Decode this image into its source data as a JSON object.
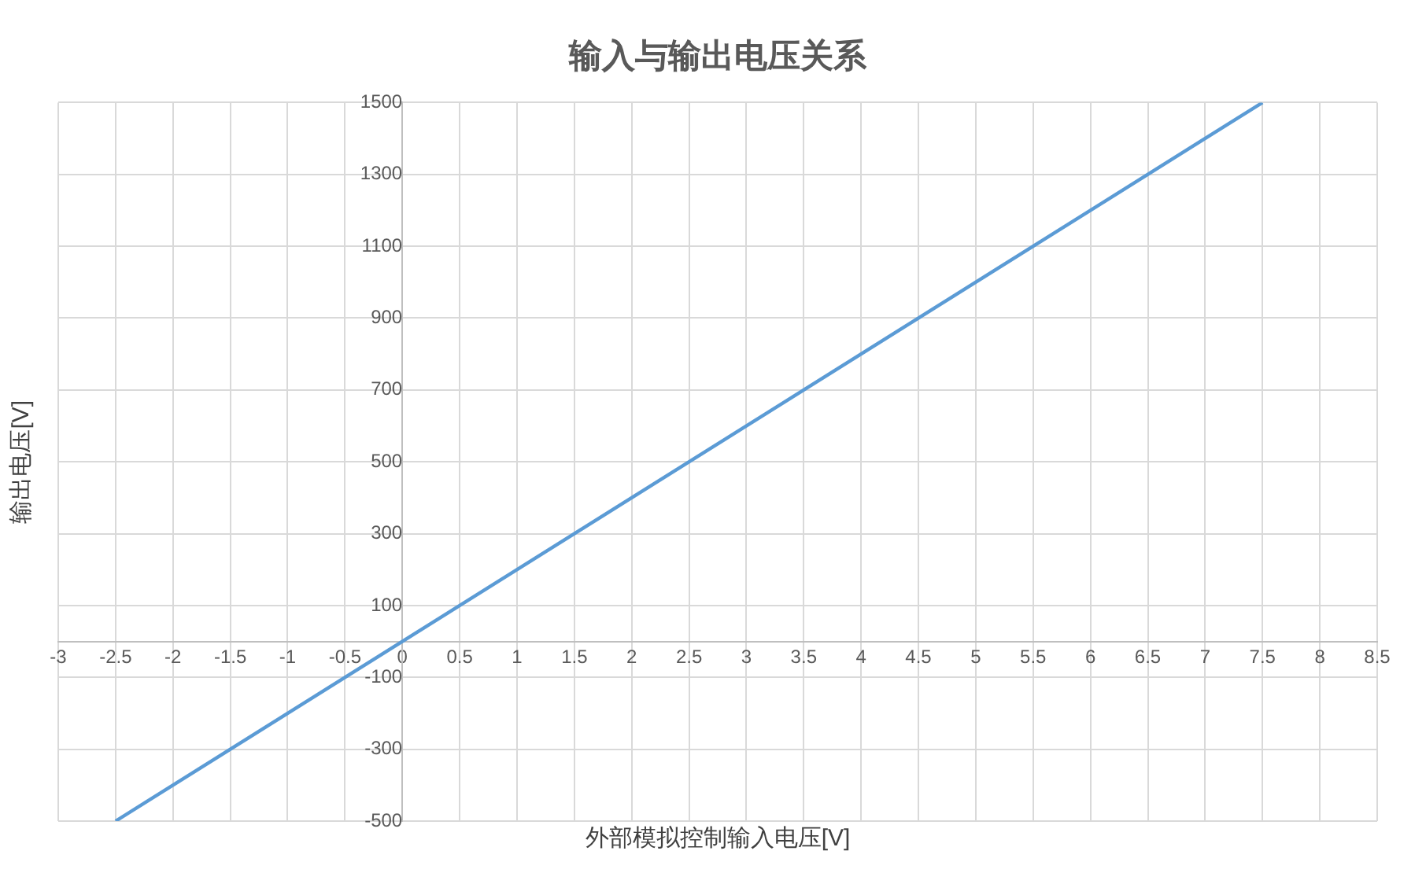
{
  "chart_data": {
    "type": "line",
    "title": "输入与输出电压关系",
    "xlabel": "外部模拟控制输入电压[V]",
    "ylabel": "输出电压[V]",
    "x": [
      -2.5,
      7.5
    ],
    "series": [
      {
        "color": "#5b9bd5",
        "values": [
          -500,
          1500
        ]
      }
    ],
    "xlim": [
      -3,
      8.5
    ],
    "xticks": [
      -3,
      -2.5,
      -2,
      -1.5,
      -1,
      -0.5,
      0,
      0.5,
      1,
      1.5,
      2,
      2.5,
      3,
      3.5,
      4,
      4.5,
      5,
      5.5,
      6,
      6.5,
      7,
      7.5,
      8,
      8.5
    ],
    "ylim": [
      -500,
      1500
    ],
    "yticks": [
      -500,
      -300,
      -100,
      100,
      300,
      500,
      700,
      900,
      1100,
      1300,
      1500
    ],
    "grid": true,
    "legend": false,
    "marker": "none",
    "line_style": "solid"
  }
}
